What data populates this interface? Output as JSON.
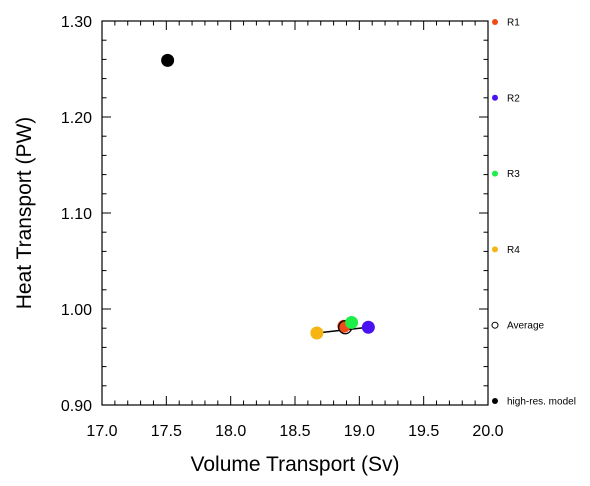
{
  "chart_data": {
    "type": "scatter",
    "title": "",
    "xlabel": "Volume Transport (Sv)",
    "ylabel": "Heat Transport (PW)",
    "xlim": [
      17.0,
      20.0
    ],
    "ylim": [
      0.9,
      1.3
    ],
    "x_ticks": [
      "17.0",
      "17.5",
      "18.0",
      "18.5",
      "19.0",
      "19.5",
      "20.0"
    ],
    "y_ticks": [
      "0.90",
      "1.00",
      "1.10",
      "1.20",
      "1.30"
    ],
    "points": [
      {
        "label": "R1",
        "x": 18.88,
        "y": 0.982,
        "color": "#f04a18",
        "filled": true
      },
      {
        "label": "R2",
        "x": 19.07,
        "y": 0.981,
        "color": "#4a12f0",
        "filled": true
      },
      {
        "label": "R3",
        "x": 18.94,
        "y": 0.986,
        "color": "#20ee48",
        "filled": true
      },
      {
        "label": "R4",
        "x": 18.67,
        "y": 0.975,
        "color": "#f7b514",
        "filled": true
      },
      {
        "label": "Average",
        "x": 18.89,
        "y": 0.981,
        "color": "#000000",
        "filled": false
      },
      {
        "label": "high-res. model",
        "x": 17.51,
        "y": 1.259,
        "color": "#000000",
        "filled": true
      }
    ],
    "connector": {
      "from": "R4",
      "to": "R2",
      "color": "#000000"
    },
    "legend": {
      "placement": "right",
      "entries": [
        {
          "label": "R1",
          "color": "#f04a18",
          "filled": true
        },
        {
          "label": "R2",
          "color": "#4a12f0",
          "filled": true
        },
        {
          "label": "R3",
          "color": "#20ee48",
          "filled": true
        },
        {
          "label": "R4",
          "color": "#f7b514",
          "filled": true
        },
        {
          "label": "Average",
          "color": "#000000",
          "filled": false
        },
        {
          "label": "high-res. model",
          "color": "#000000",
          "filled": true
        }
      ]
    },
    "grid": false
  }
}
